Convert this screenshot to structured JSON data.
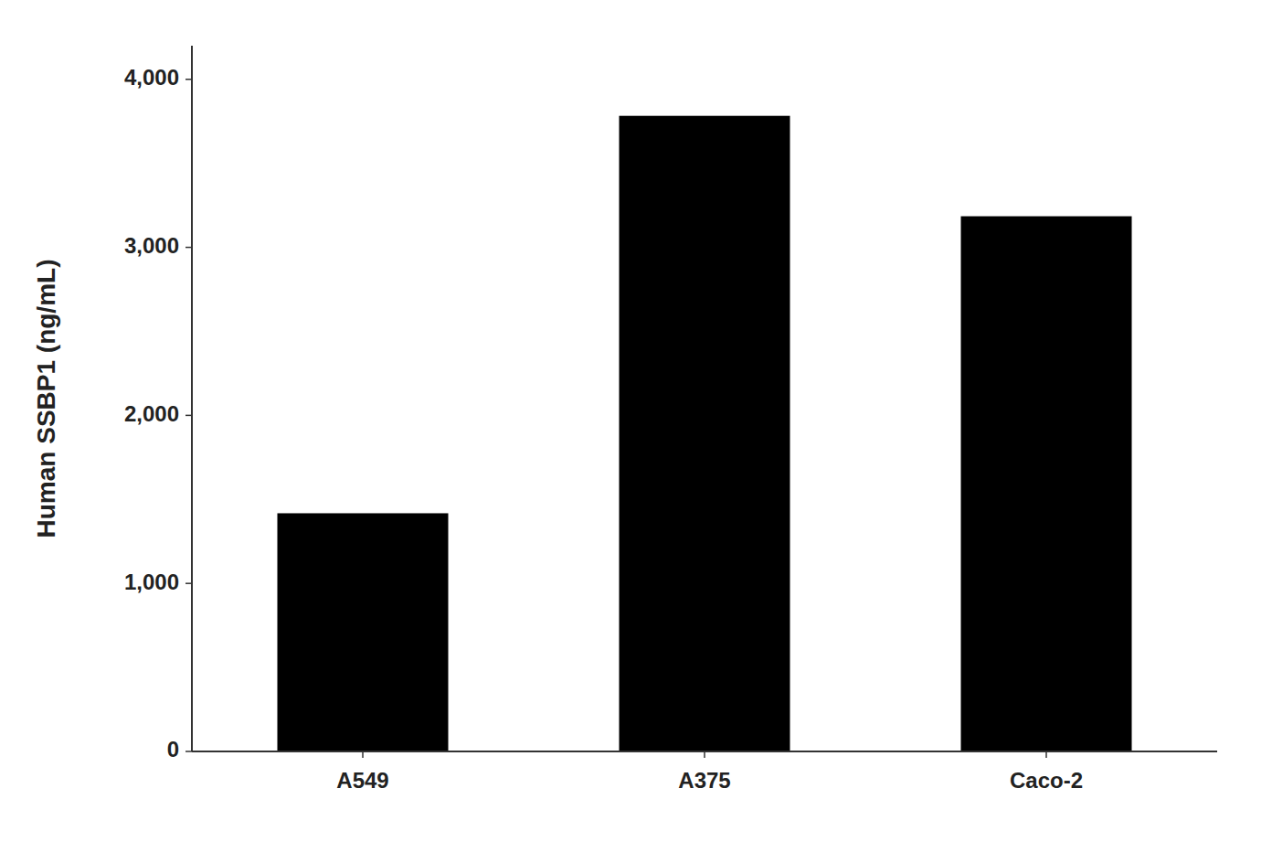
{
  "chart_data": {
    "type": "bar",
    "categories": [
      "A549",
      "A375",
      "Caco-2"
    ],
    "values": [
      1417.48,
      3782.71,
      3185.11
    ],
    "color": "#000000",
    "ylabel": "Human SSBP1 (ng/mL)",
    "ylim": [
      0,
      4200
    ],
    "yticks": [
      0,
      {
        "value": 1000,
        "label": "1,000"
      },
      {
        "value": 2000,
        "label": "2,000"
      },
      {
        "value": 3000,
        "label": "3,000"
      },
      {
        "value": 4000,
        "label": "4,000"
      }
    ],
    "grid": false
  }
}
